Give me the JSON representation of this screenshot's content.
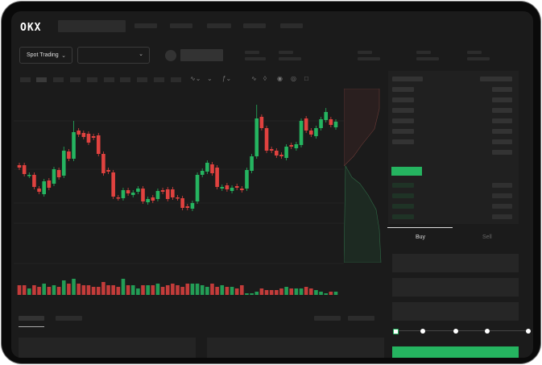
{
  "header": {
    "logo": "OKX"
  },
  "toolbar": {
    "market_type": "Spot Trading",
    "pair_select": ""
  },
  "order_panel": {
    "tabs": [
      {
        "label": "Buy",
        "active": true
      },
      {
        "label": "Sell",
        "active": false
      }
    ],
    "slider_percent": 0
  },
  "colors": {
    "up": "#25b460",
    "down": "#e0423f",
    "background": "#1b1b1b"
  },
  "chart_data": {
    "type": "candlestick",
    "title": "",
    "candles": [
      [
        97,
        94
      ],
      [
        97,
        86
      ],
      [
        84,
        85
      ],
      [
        85,
        70
      ],
      [
        68,
        64
      ],
      [
        61,
        77
      ],
      [
        78,
        69
      ],
      [
        74,
        92
      ],
      [
        91,
        82
      ],
      [
        84,
        115
      ],
      [
        114,
        105
      ],
      [
        105,
        138
      ],
      [
        140,
        135
      ],
      [
        137,
        132
      ],
      [
        136,
        125
      ],
      [
        133,
        131
      ],
      [
        134,
        111
      ],
      [
        111,
        87
      ],
      [
        91,
        89
      ],
      [
        88,
        58
      ],
      [
        57,
        56
      ],
      [
        56,
        66
      ],
      [
        66,
        62
      ],
      [
        60,
        63
      ],
      [
        64,
        68
      ],
      [
        68,
        52
      ],
      [
        51,
        55
      ],
      [
        57,
        53
      ],
      [
        55,
        65
      ],
      [
        66,
        64
      ],
      [
        67,
        55
      ],
      [
        67,
        57
      ],
      [
        57,
        56
      ],
      [
        56,
        44
      ],
      [
        46,
        44
      ],
      [
        43,
        50
      ],
      [
        52,
        85
      ],
      [
        85,
        90
      ],
      [
        89,
        100
      ],
      [
        98,
        87
      ],
      [
        94,
        70
      ],
      [
        68,
        70
      ],
      [
        72,
        67
      ],
      [
        65,
        69
      ],
      [
        71,
        69
      ],
      [
        68,
        66
      ],
      [
        68,
        91
      ],
      [
        90,
        108
      ],
      [
        108,
        155
      ],
      [
        157,
        143
      ],
      [
        143,
        115
      ],
      [
        117,
        115
      ],
      [
        115,
        109
      ],
      [
        110,
        108
      ],
      [
        106,
        120
      ],
      [
        122,
        120
      ],
      [
        118,
        123
      ],
      [
        122,
        152
      ],
      [
        155,
        140
      ],
      [
        140,
        135
      ],
      [
        133,
        143
      ],
      [
        143,
        154
      ],
      [
        153,
        163
      ],
      [
        154,
        147
      ],
      [
        144,
        151
      ]
    ],
    "candle_fields": [
      "open",
      "close"
    ],
    "highs_override": {
      "11": 152,
      "48": 172,
      "62": 168,
      "9": 120
    },
    "volume": [
      6,
      6,
      4,
      6,
      5,
      7,
      5,
      6,
      5,
      9,
      7,
      10,
      7,
      6,
      6,
      5,
      5,
      8,
      6,
      6,
      5,
      10,
      6,
      6,
      4,
      6,
      6,
      6,
      7,
      5,
      6,
      7,
      6,
      5,
      7,
      7,
      7,
      6,
      5,
      7,
      5,
      6,
      5,
      5,
      4,
      6,
      1,
      1,
      2,
      4,
      3,
      3,
      3,
      4,
      5,
      4,
      4,
      4,
      5,
      4,
      3,
      2,
      1,
      2,
      2
    ]
  }
}
